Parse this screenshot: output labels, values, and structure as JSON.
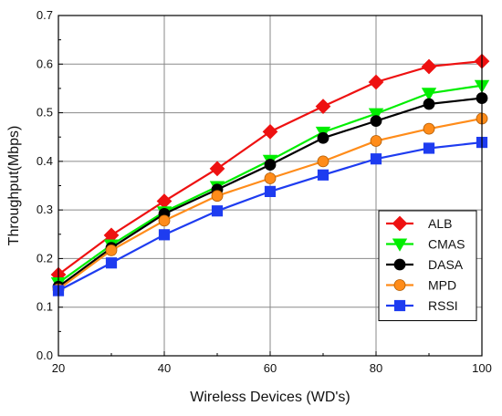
{
  "chart_data": {
    "type": "line",
    "title": "",
    "xlabel": "Wireless Devices (WD's)",
    "ylabel": "Throughput(Mbps)",
    "xlim": [
      20,
      100
    ],
    "ylim": [
      0.0,
      0.7
    ],
    "x": [
      20,
      30,
      40,
      50,
      60,
      70,
      80,
      90,
      100
    ],
    "x_ticks": [
      "20",
      "40",
      "60",
      "80",
      "100"
    ],
    "y_ticks": [
      "0.0",
      "0.1",
      "0.2",
      "0.3",
      "0.4",
      "0.5",
      "0.6",
      "0.7"
    ],
    "grid": true,
    "legend_position": "bottom-right",
    "series": [
      {
        "name": "ALB",
        "color": "#ee1111",
        "marker": "diamond",
        "values": [
          0.167,
          0.248,
          0.318,
          0.385,
          0.461,
          0.513,
          0.563,
          0.595,
          0.606
        ]
      },
      {
        "name": "CMAS",
        "color": "#00ee00",
        "marker": "triangle-down",
        "values": [
          0.15,
          0.228,
          0.296,
          0.348,
          0.402,
          0.46,
          0.498,
          0.54,
          0.556
        ]
      },
      {
        "name": "DASA",
        "color": "#000000",
        "marker": "circle",
        "values": [
          0.142,
          0.222,
          0.292,
          0.342,
          0.393,
          0.448,
          0.483,
          0.518,
          0.53
        ]
      },
      {
        "name": "MPD",
        "color": "#ff8c1a",
        "marker": "circle",
        "values": [
          0.137,
          0.217,
          0.278,
          0.329,
          0.365,
          0.4,
          0.442,
          0.467,
          0.488
        ]
      },
      {
        "name": "RSSI",
        "color": "#1e3cf0",
        "marker": "square",
        "values": [
          0.134,
          0.191,
          0.249,
          0.298,
          0.338,
          0.372,
          0.405,
          0.427,
          0.439
        ]
      }
    ]
  }
}
